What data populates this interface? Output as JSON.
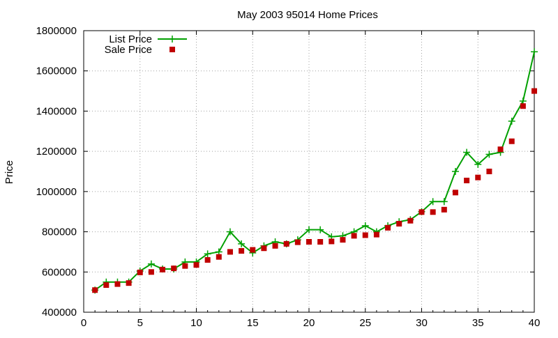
{
  "chart_data": {
    "type": "line",
    "title": "May 2003 95014 Home Prices",
    "xlabel": "",
    "ylabel": "Price",
    "xlim": [
      0,
      40
    ],
    "ylim": [
      400000,
      1800000
    ],
    "x_ticks": [
      0,
      5,
      10,
      15,
      20,
      25,
      30,
      35,
      40
    ],
    "y_ticks": [
      400000,
      600000,
      800000,
      1000000,
      1200000,
      1400000,
      1600000,
      1800000
    ],
    "grid": true,
    "legend_position": "top-left",
    "series": [
      {
        "name": "List Price",
        "style": "lines+points",
        "color": "#00a000",
        "marker": "plus",
        "x": [
          1,
          2,
          3,
          4,
          5,
          6,
          7,
          8,
          9,
          10,
          11,
          12,
          13,
          14,
          15,
          16,
          17,
          18,
          19,
          20,
          21,
          22,
          23,
          24,
          25,
          26,
          27,
          28,
          29,
          30,
          31,
          32,
          33,
          34,
          35,
          36,
          37,
          38,
          39,
          40
        ],
        "y": [
          510000,
          550000,
          550000,
          550000,
          605000,
          640000,
          615000,
          615000,
          650000,
          650000,
          690000,
          700000,
          800000,
          740000,
          695000,
          730000,
          750000,
          740000,
          760000,
          810000,
          810000,
          775000,
          780000,
          800000,
          830000,
          800000,
          830000,
          850000,
          860000,
          900000,
          950000,
          950000,
          1100000,
          1195000,
          1135000,
          1185000,
          1195000,
          1350000,
          1450000,
          1695000
        ]
      },
      {
        "name": "Sale Price",
        "style": "points",
        "color": "#c00000",
        "marker": "square",
        "x": [
          1,
          2,
          3,
          4,
          5,
          6,
          7,
          8,
          9,
          10,
          11,
          12,
          13,
          14,
          15,
          16,
          17,
          18,
          19,
          20,
          21,
          22,
          23,
          24,
          25,
          26,
          27,
          28,
          29,
          30,
          31,
          32,
          33,
          34,
          35,
          36,
          37,
          38,
          39,
          40
        ],
        "y": [
          510000,
          535000,
          540000,
          545000,
          598000,
          600000,
          612000,
          618000,
          630000,
          635000,
          660000,
          675000,
          700000,
          705000,
          710000,
          718000,
          730000,
          740000,
          748000,
          750000,
          750000,
          752000,
          760000,
          780000,
          783000,
          786000,
          820000,
          840000,
          855000,
          898000,
          898000,
          910000,
          995000,
          1055000,
          1070000,
          1100000,
          1210000,
          1250000,
          1425000,
          1500000
        ]
      }
    ]
  }
}
